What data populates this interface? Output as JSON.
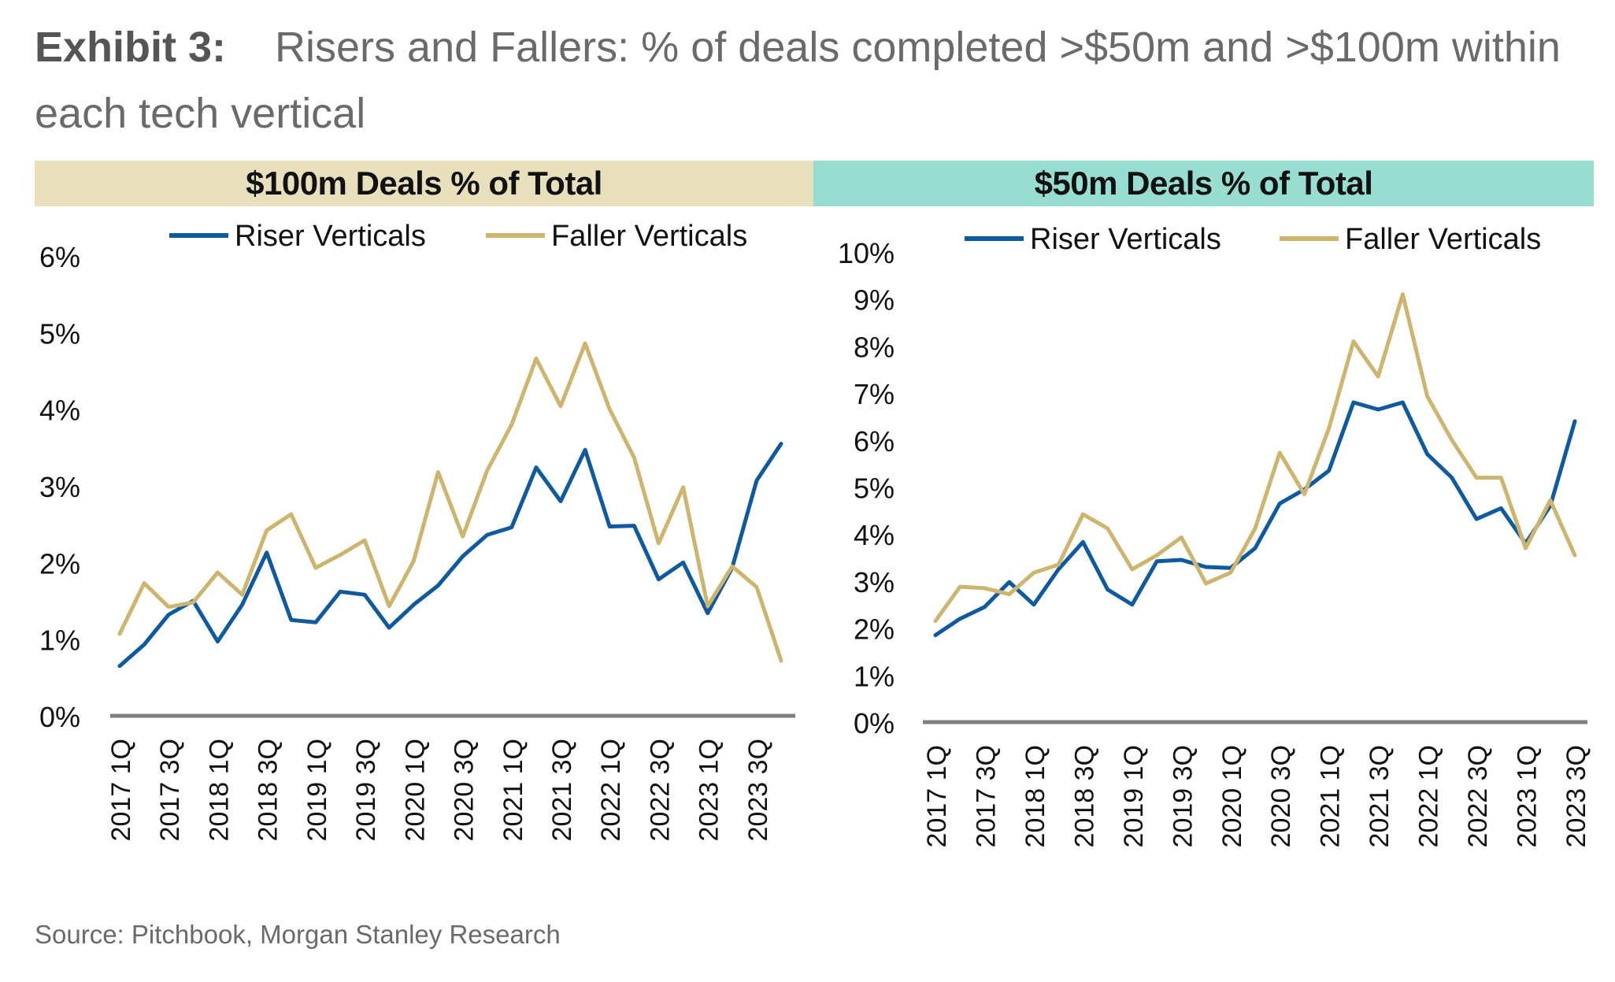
{
  "title": {
    "exhibit_label": "Exhibit 3:",
    "text": "Risers and Fallers: % of deals completed >$50m and >$100m within each tech vertical"
  },
  "source": "Source: Pitchbook, Morgan Stanley Research",
  "colors": {
    "riser": "#0d5aa0",
    "faller": "#cdb56e",
    "axis": "#7f7f7f",
    "header_left_bg": "#e8dfbd",
    "header_right_bg": "#97ddd0"
  },
  "chart_data": [
    {
      "type": "line",
      "panel_title": "$100m Deals % of Total",
      "x": [
        "2017 1Q",
        "2017 2Q",
        "2017 3Q",
        "2017 4Q",
        "2018 1Q",
        "2018 2Q",
        "2018 3Q",
        "2018 4Q",
        "2019 1Q",
        "2019 2Q",
        "2019 3Q",
        "2019 4Q",
        "2020 1Q",
        "2020 2Q",
        "2020 3Q",
        "2020 4Q",
        "2021 1Q",
        "2021 2Q",
        "2021 3Q",
        "2021 4Q",
        "2022 1Q",
        "2022 2Q",
        "2022 3Q",
        "2022 4Q",
        "2023 1Q",
        "2023 2Q",
        "2023 3Q",
        "2023 4Q"
      ],
      "x_tick_labels": [
        "2017 1Q",
        "2017 3Q",
        "2018 1Q",
        "2018 3Q",
        "2019 1Q",
        "2019 3Q",
        "2020 1Q",
        "2020 3Q",
        "2021 1Q",
        "2021 3Q",
        "2022 1Q",
        "2022 3Q",
        "2023 1Q",
        "2023 3Q"
      ],
      "series": [
        {
          "name": "Riser Verticals",
          "values": [
            0.65,
            0.93,
            1.32,
            1.5,
            0.97,
            1.45,
            2.13,
            1.25,
            1.22,
            1.62,
            1.58,
            1.15,
            1.45,
            1.7,
            2.08,
            2.36,
            2.46,
            3.24,
            2.8,
            3.47,
            2.47,
            2.48,
            1.78,
            2.0,
            1.34,
            1.93,
            3.07,
            3.55
          ]
        },
        {
          "name": "Faller Verticals",
          "values": [
            1.07,
            1.73,
            1.42,
            1.48,
            1.87,
            1.58,
            2.42,
            2.63,
            1.93,
            2.1,
            2.29,
            1.43,
            2.02,
            3.18,
            2.34,
            3.2,
            3.8,
            4.66,
            4.04,
            4.86,
            4.0,
            3.37,
            2.25,
            2.98,
            1.43,
            1.95,
            1.68,
            0.72
          ]
        }
      ],
      "y_ticks": [
        "0%",
        "1%",
        "2%",
        "3%",
        "4%",
        "5%",
        "6%"
      ],
      "ylim": [
        0,
        6
      ],
      "legend": "top"
    },
    {
      "type": "line",
      "panel_title": "$50m Deals % of Total",
      "x": [
        "2017 1Q",
        "2017 2Q",
        "2017 3Q",
        "2017 4Q",
        "2018 1Q",
        "2018 2Q",
        "2018 3Q",
        "2018 4Q",
        "2019 1Q",
        "2019 2Q",
        "2019 3Q",
        "2019 4Q",
        "2020 1Q",
        "2020 2Q",
        "2020 3Q",
        "2020 4Q",
        "2021 1Q",
        "2021 2Q",
        "2021 3Q",
        "2021 4Q",
        "2022 1Q",
        "2022 2Q",
        "2022 3Q",
        "2022 4Q",
        "2023 1Q",
        "2023 2Q",
        "2023 3Q"
      ],
      "x_tick_labels": [
        "2017 1Q",
        "2017 3Q",
        "2018 1Q",
        "2018 3Q",
        "2019 1Q",
        "2019 3Q",
        "2020 1Q",
        "2020 3Q",
        "2021 1Q",
        "2021 3Q",
        "2022 1Q",
        "2022 3Q",
        "2023 1Q",
        "2023 3Q"
      ],
      "series": [
        {
          "name": "Riser Verticals",
          "values": [
            1.85,
            2.2,
            2.45,
            2.98,
            2.5,
            3.25,
            3.83,
            2.82,
            2.5,
            3.42,
            3.45,
            3.3,
            3.28,
            3.7,
            4.65,
            4.95,
            5.35,
            6.8,
            6.65,
            6.8,
            5.7,
            5.2,
            4.32,
            4.55,
            3.8,
            4.6,
            6.4
          ]
        },
        {
          "name": "Faller Verticals",
          "values": [
            2.15,
            2.88,
            2.85,
            2.72,
            3.18,
            3.35,
            4.42,
            4.12,
            3.25,
            3.55,
            3.93,
            2.95,
            3.18,
            4.12,
            5.73,
            4.85,
            6.25,
            8.1,
            7.35,
            9.1,
            6.93,
            6.0,
            5.2,
            5.2,
            3.7,
            4.72,
            3.55
          ]
        }
      ],
      "y_ticks": [
        "0%",
        "1%",
        "2%",
        "3%",
        "4%",
        "5%",
        "6%",
        "7%",
        "8%",
        "9%",
        "10%"
      ],
      "ylim": [
        0,
        10
      ],
      "legend": "top"
    }
  ]
}
